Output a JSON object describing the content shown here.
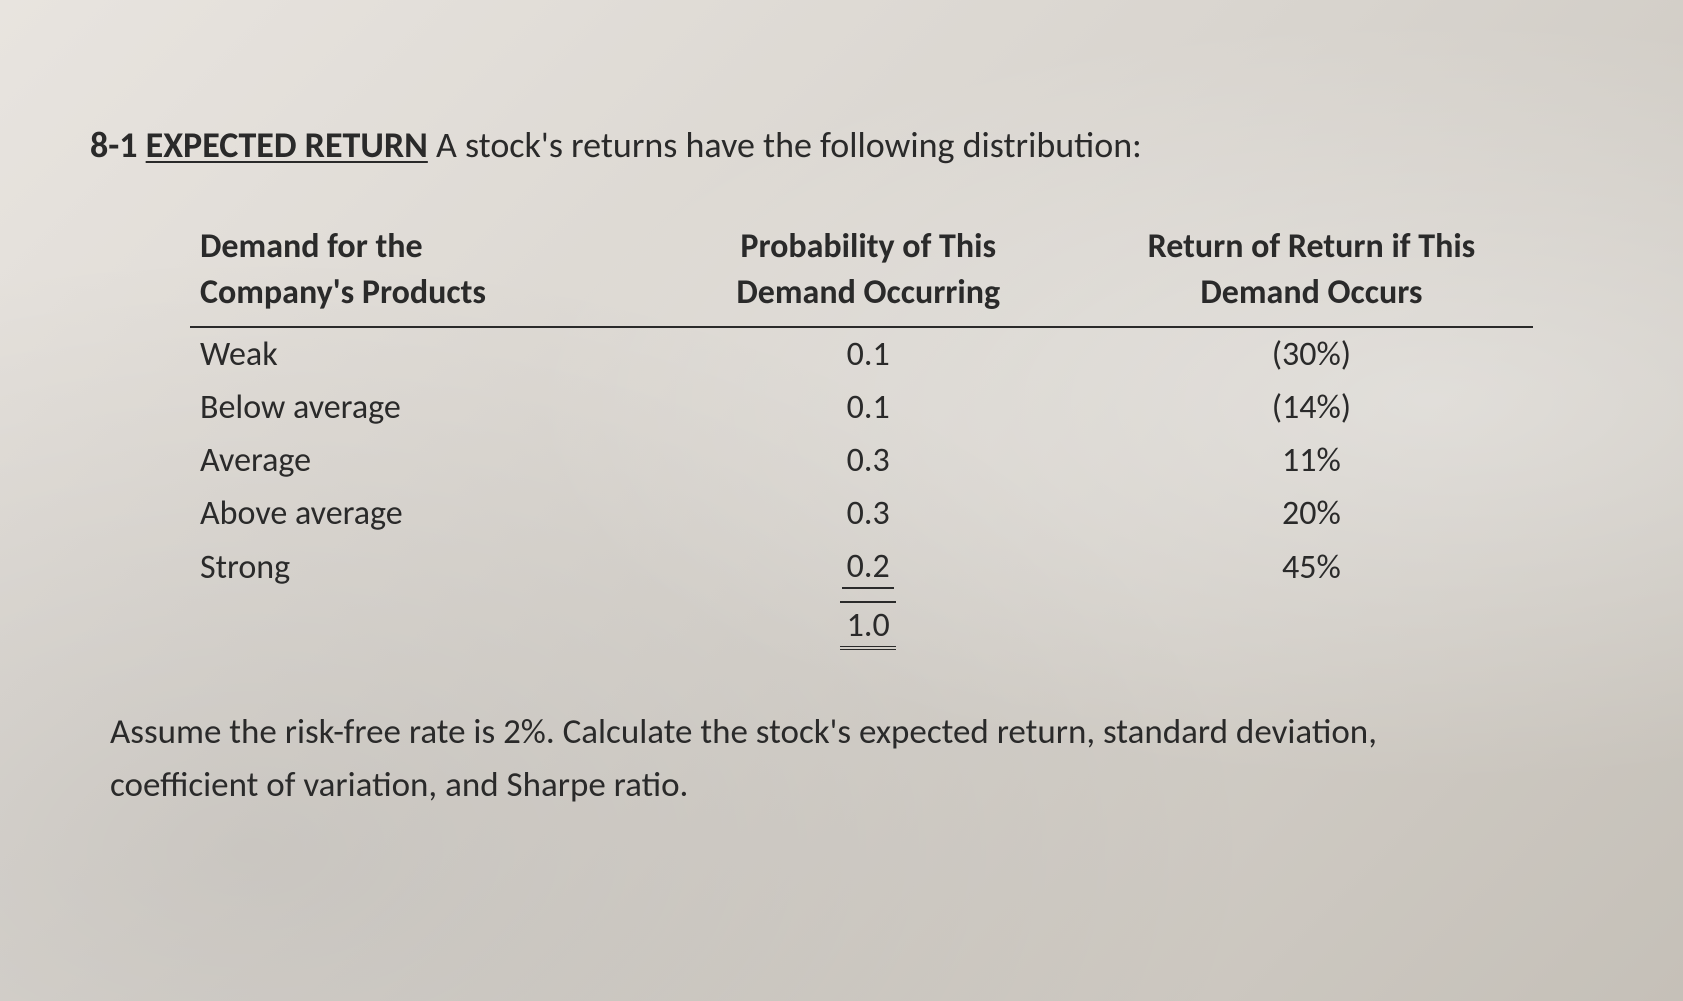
{
  "problem": {
    "number": "8-1",
    "title": "EXPECTED RETURN",
    "intro": "A stock's returns have the following distribution:"
  },
  "table": {
    "headers": {
      "col1_line1": "Demand for the",
      "col1_line2": "Company's Products",
      "col2_line1": "Probability of This",
      "col2_line2": "Demand Occurring",
      "col3_line1": "Return of Return if This",
      "col3_line2": "Demand Occurs"
    },
    "rows": [
      {
        "demand": "Weak",
        "prob": "0.1",
        "ret": "(30%)"
      },
      {
        "demand": "Below average",
        "prob": "0.1",
        "ret": "(14%)"
      },
      {
        "demand": "Average",
        "prob": "0.3",
        "ret": "11%"
      },
      {
        "demand": "Above average",
        "prob": "0.3",
        "ret": "20%"
      },
      {
        "demand": "Strong",
        "prob": "0.2",
        "ret": "45%"
      }
    ],
    "total": "1.0"
  },
  "question": "Assume the risk-free rate is 2%. Calculate the stock's expected return, standard deviation, coefficient of variation, and Sharpe ratio.",
  "style": {
    "text_color": "#2a2a2a",
    "border_color": "#2a2a2a",
    "title_fontsize": 36,
    "table_fontsize": 34,
    "question_fontsize": 35
  }
}
